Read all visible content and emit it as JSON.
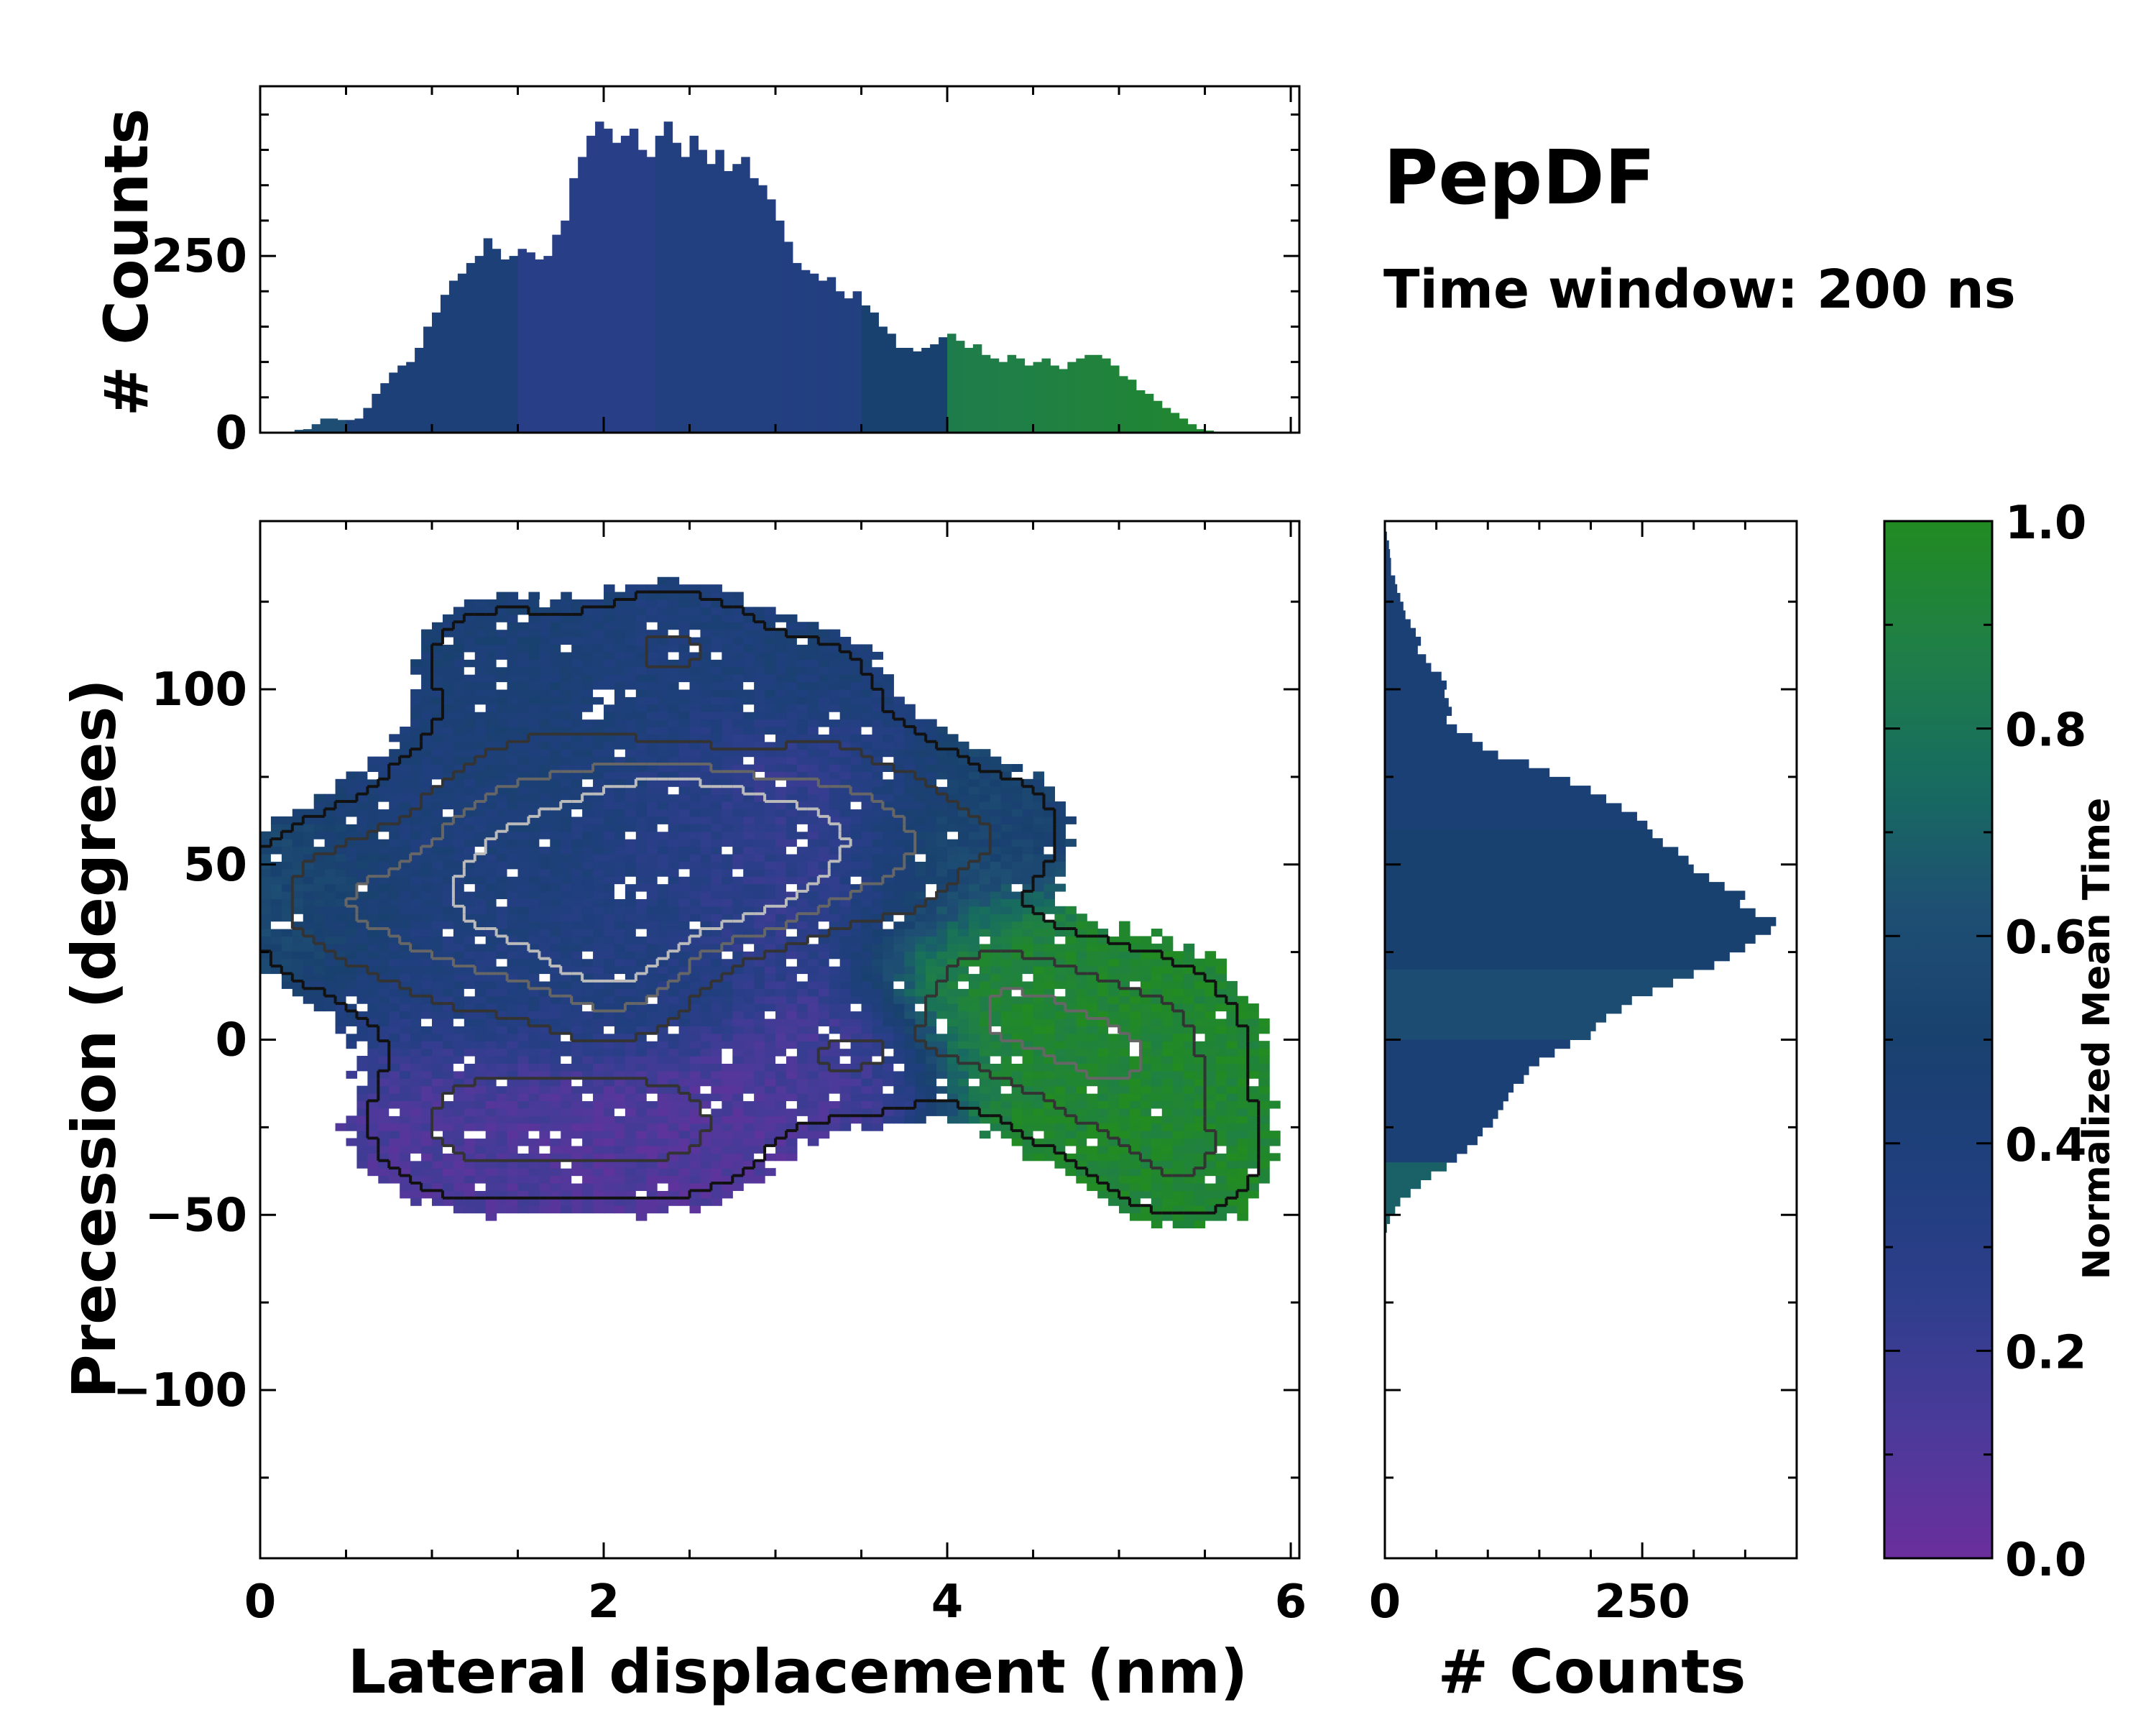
{
  "chart_data": {
    "type": "heatmap",
    "title": "PepDF",
    "subtitle": "Time window: 200 ns",
    "main": {
      "xlabel": "Lateral displacement (nm)",
      "ylabel": "Precession (degrees)",
      "xlim": [
        0,
        6.05
      ],
      "ylim": [
        -148,
        148
      ],
      "xticks": [
        0,
        2,
        4,
        6
      ],
      "xtick_labels": [
        "0",
        "2",
        "4",
        "6"
      ],
      "yticks": [
        -100,
        -50,
        0,
        50,
        100
      ],
      "ytick_labels": [
        "−100",
        "−50",
        "0",
        "50",
        "100"
      ],
      "color_quantity": "Normalized Mean Time",
      "clusters": [
        {
          "x": 0.4,
          "y": 40,
          "sx": 0.35,
          "sy": 14,
          "w": 0.6,
          "t": 0.6
        },
        {
          "x": 1.2,
          "y": 35,
          "sx": 0.5,
          "sy": 22,
          "w": 1.0,
          "t": 0.35
        },
        {
          "x": 1.7,
          "y": 60,
          "sx": 0.5,
          "sy": 22,
          "w": 1.0,
          "t": 0.45
        },
        {
          "x": 2.1,
          "y": 25,
          "sx": 0.35,
          "sy": 16,
          "w": 1.3,
          "t": 0.35
        },
        {
          "x": 2.4,
          "y": 60,
          "sx": 0.35,
          "sy": 14,
          "w": 1.4,
          "t": 0.3
        },
        {
          "x": 2.8,
          "y": 48,
          "sx": 0.35,
          "sy": 16,
          "w": 1.3,
          "t": 0.25
        },
        {
          "x": 3.3,
          "y": 60,
          "sx": 0.4,
          "sy": 18,
          "w": 0.8,
          "t": 0.15
        },
        {
          "x": 3.8,
          "y": 55,
          "sx": 0.4,
          "sy": 18,
          "w": 0.6,
          "t": 0.65
        },
        {
          "x": 4.4,
          "y": 60,
          "sx": 0.25,
          "sy": 10,
          "w": 0.3,
          "t": 0.45
        },
        {
          "x": 2.4,
          "y": 112,
          "sx": 0.35,
          "sy": 12,
          "w": 0.6,
          "t": 0.4
        },
        {
          "x": 3.2,
          "y": 100,
          "sx": 0.3,
          "sy": 12,
          "w": 0.4,
          "t": 0.45
        },
        {
          "x": 1.4,
          "y": 110,
          "sx": 0.35,
          "sy": 12,
          "w": 0.4,
          "t": 0.45
        },
        {
          "x": 1.3,
          "y": -25,
          "sx": 0.45,
          "sy": 14,
          "w": 0.7,
          "t": 0.12
        },
        {
          "x": 2.3,
          "y": -25,
          "sx": 0.45,
          "sy": 14,
          "w": 0.7,
          "t": 0.1
        },
        {
          "x": 3.4,
          "y": -5,
          "sx": 0.4,
          "sy": 12,
          "w": 0.6,
          "t": 0.15
        },
        {
          "x": 4.3,
          "y": 10,
          "sx": 0.35,
          "sy": 14,
          "w": 0.8,
          "t": 0.95
        },
        {
          "x": 5.0,
          "y": -5,
          "sx": 0.45,
          "sy": 18,
          "w": 1.0,
          "t": 0.95
        },
        {
          "x": 5.4,
          "y": -35,
          "sx": 0.3,
          "sy": 12,
          "w": 0.5,
          "t": 0.95
        }
      ]
    },
    "top_histogram": {
      "ylabel": "# Counts",
      "ylim": [
        0,
        490
      ],
      "yticks": [
        0,
        250
      ],
      "ytick_labels": [
        "0",
        "250"
      ],
      "bin_width": 0.05,
      "x_start": 0.2,
      "values": [
        4,
        5,
        12,
        20,
        20,
        18,
        18,
        20,
        35,
        55,
        70,
        85,
        95,
        100,
        120,
        150,
        170,
        195,
        215,
        225,
        240,
        250,
        275,
        260,
        245,
        250,
        260,
        255,
        245,
        250,
        280,
        300,
        360,
        390,
        420,
        440,
        430,
        410,
        420,
        430,
        400,
        390,
        420,
        440,
        410,
        390,
        420,
        400,
        380,
        400,
        370,
        380,
        390,
        360,
        350,
        330,
        300,
        270,
        240,
        230,
        225,
        215,
        220,
        200,
        190,
        200,
        180,
        170,
        150,
        140,
        120,
        120,
        115,
        120,
        125,
        135,
        140,
        130,
        120,
        125,
        110,
        105,
        100,
        110,
        105,
        95,
        100,
        105,
        95,
        90,
        100,
        105,
        110,
        110,
        105,
        95,
        80,
        75,
        60,
        55,
        45,
        35,
        28,
        20,
        12,
        5,
        3
      ]
    },
    "right_histogram": {
      "xlabel": "# Counts",
      "xlim": [
        0,
        400
      ],
      "xticks": [
        0,
        250
      ],
      "xtick_labels": [
        "0",
        "250"
      ],
      "bin_width": 2.5,
      "y_start": 145,
      "values": [
        2,
        4,
        5,
        6,
        6,
        10,
        12,
        15,
        18,
        20,
        25,
        30,
        35,
        32,
        40,
        45,
        55,
        60,
        58,
        62,
        65,
        60,
        70,
        85,
        95,
        110,
        140,
        160,
        180,
        200,
        215,
        230,
        245,
        255,
        260,
        270,
        285,
        295,
        300,
        315,
        330,
        350,
        345,
        360,
        380,
        375,
        360,
        350,
        335,
        320,
        300,
        280,
        260,
        240,
        230,
        215,
        205,
        200,
        180,
        165,
        150,
        140,
        135,
        125,
        120,
        115,
        110,
        105,
        95,
        90,
        80,
        70,
        60,
        45,
        35,
        25,
        15,
        10,
        5,
        2
      ]
    },
    "colorbar": {
      "label": "Normalized Mean Time",
      "ticks": [
        0.0,
        0.2,
        0.4,
        0.6,
        0.8,
        1.0
      ],
      "tick_labels": [
        "0.0",
        "0.2",
        "0.4",
        "0.6",
        "0.8",
        "1.0"
      ],
      "range": [
        0.0,
        1.0
      ],
      "colors": [
        "#6a2f9c",
        "#4b3a9a",
        "#2e3e8c",
        "#1f3f7d",
        "#19416f",
        "#1e4f73",
        "#176c5f",
        "#1f7f47",
        "#228b22"
      ]
    }
  }
}
